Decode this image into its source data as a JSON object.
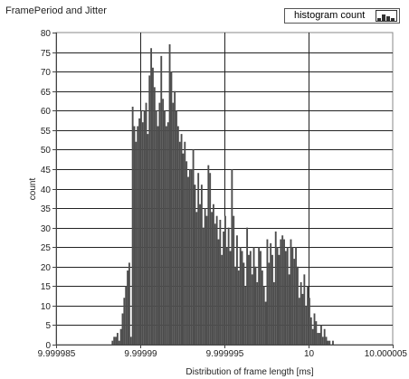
{
  "header": {
    "title": "FramePeriod and Jitter"
  },
  "legend": {
    "label": "histogram count"
  },
  "colors": {
    "bars": "#4d4d4d",
    "grid": "#222222",
    "plot_bg": "#ffffff"
  },
  "chart_data": {
    "type": "bar",
    "title": "FramePeriod and Jitter",
    "xlabel": "Distribution of frame length [ms]",
    "ylabel": "count",
    "xlim": [
      9.999985,
      10.000005
    ],
    "ylim": [
      0,
      80
    ],
    "x_ticks": [
      "9.999985",
      "9.99999",
      "9.999995",
      "10",
      "10.000005"
    ],
    "y_ticks": [
      0,
      5,
      10,
      15,
      20,
      25,
      30,
      35,
      40,
      45,
      50,
      55,
      60,
      65,
      70,
      75,
      80
    ],
    "grid": true,
    "legend_position": "top-right",
    "series": [
      {
        "name": "histogram count"
      }
    ],
    "bin_start": 9.9999883,
    "bin_width": 1e-07,
    "values": [
      1,
      2,
      2,
      3,
      1,
      4,
      8,
      12,
      15,
      19,
      21,
      2,
      61,
      56,
      52,
      56,
      58,
      60,
      57,
      60,
      62,
      54,
      69,
      76,
      71,
      66,
      60,
      56,
      62,
      74,
      63,
      60,
      56,
      57,
      77,
      70,
      62,
      65,
      60,
      56,
      52,
      54,
      49,
      52,
      47,
      43,
      45,
      45,
      50,
      41,
      34,
      44,
      36,
      41,
      30,
      35,
      33,
      46,
      44,
      34,
      36,
      31,
      33,
      27,
      32,
      23,
      29,
      33,
      25,
      30,
      24,
      45,
      33,
      20,
      28,
      19,
      25,
      24,
      21,
      15,
      30,
      23,
      24,
      18,
      25,
      20,
      16,
      25,
      24,
      19,
      15,
      11,
      27,
      21,
      26,
      23,
      16,
      29,
      25,
      23,
      27,
      28,
      27,
      24,
      25,
      18,
      27,
      25,
      22,
      25,
      20,
      12,
      16,
      13,
      18,
      10,
      15,
      12,
      7,
      4,
      8,
      6,
      3,
      3,
      5,
      2,
      4,
      2,
      1,
      1,
      0,
      1
    ]
  }
}
